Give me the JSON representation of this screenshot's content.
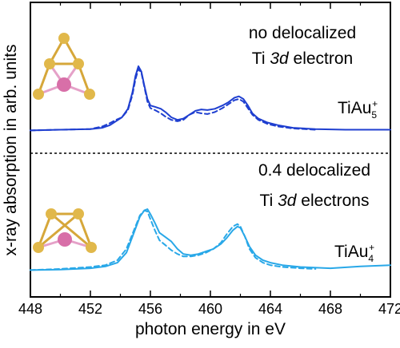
{
  "chart_data": {
    "type": "line",
    "xlabel": "photon energy in eV",
    "ylabel": "x-ray absorption in arb. units",
    "xlim": [
      448,
      472
    ],
    "x_ticks": [
      448,
      452,
      456,
      460,
      464,
      468,
      472
    ],
    "y_ticks": "none",
    "grid": false,
    "panels": [
      {
        "label": "TiAu5+",
        "label_parts": {
          "base": "TiAu",
          "sub": "5",
          "sup": "+"
        },
        "annotation_lines": [
          [
            "no delocalized"
          ],
          [
            "Ti ",
            "3d",
            " electron"
          ]
        ],
        "color": "#1f3fd0",
        "series": [
          {
            "style": "solid",
            "x": [
              448.0,
              450.0,
              452.0,
              452.8,
              453.3,
              453.7,
              454.1,
              454.5,
              454.8,
              455.0,
              455.2,
              455.4,
              455.6,
              455.8,
              456.0,
              456.3,
              456.7,
              457.0,
              457.4,
              457.8,
              458.2,
              458.6,
              459.0,
              459.4,
              459.8,
              460.3,
              460.8,
              461.2,
              461.6,
              461.9,
              462.2,
              462.5,
              462.8,
              463.2,
              463.8,
              464.5,
              465.5,
              467.0,
              469.0,
              472.0
            ],
            "y": [
              0.02,
              0.03,
              0.04,
              0.06,
              0.1,
              0.16,
              0.22,
              0.35,
              0.6,
              0.85,
              1.0,
              0.92,
              0.7,
              0.5,
              0.4,
              0.38,
              0.35,
              0.3,
              0.22,
              0.18,
              0.2,
              0.26,
              0.32,
              0.34,
              0.33,
              0.35,
              0.4,
              0.45,
              0.52,
              0.54,
              0.5,
              0.4,
              0.28,
              0.2,
              0.14,
              0.1,
              0.06,
              0.04,
              0.03,
              0.03
            ]
          },
          {
            "style": "dashed",
            "x": [
              448.0,
              450.0,
              452.0,
              452.8,
              453.3,
              453.7,
              454.1,
              454.5,
              454.8,
              455.0,
              455.2,
              455.4,
              455.6,
              455.8,
              456.0,
              456.3,
              456.7,
              457.0,
              457.4,
              457.8,
              458.2,
              458.6,
              459.0,
              459.4,
              459.8,
              460.3,
              460.8,
              461.2,
              461.6,
              461.9,
              462.2,
              462.5,
              462.8,
              463.2,
              463.8,
              464.5,
              465.5,
              467.0
            ],
            "y": [
              0.02,
              0.03,
              0.04,
              0.08,
              0.13,
              0.18,
              0.22,
              0.33,
              0.56,
              0.8,
              0.96,
              0.9,
              0.68,
              0.46,
              0.36,
              0.33,
              0.28,
              0.23,
              0.18,
              0.16,
              0.18,
              0.26,
              0.3,
              0.28,
              0.27,
              0.3,
              0.36,
              0.42,
              0.48,
              0.5,
              0.46,
              0.36,
              0.26,
              0.18,
              0.12,
              0.08,
              0.05,
              0.03
            ]
          }
        ]
      },
      {
        "label": "TiAu4+",
        "label_parts": {
          "base": "TiAu",
          "sub": "4",
          "sup": "+"
        },
        "annotation_lines": [
          [
            "0.4 delocalized"
          ],
          [
            "Ti ",
            "3d",
            " electrons"
          ]
        ],
        "color": "#29a8e8",
        "series": [
          {
            "style": "solid",
            "x": [
              448.0,
              450.0,
              452.0,
              453.0,
              453.8,
              454.4,
              454.9,
              455.3,
              455.6,
              455.8,
              456.0,
              456.3,
              456.6,
              457.0,
              457.4,
              457.8,
              458.2,
              458.7,
              459.2,
              459.7,
              460.2,
              460.7,
              461.1,
              461.5,
              461.8,
              462.0,
              462.3,
              462.6,
              463.0,
              463.5,
              464.0,
              464.8,
              466.0,
              468.0,
              470.0,
              472.0
            ],
            "y": [
              0.02,
              0.03,
              0.05,
              0.08,
              0.14,
              0.3,
              0.62,
              0.88,
              0.98,
              1.0,
              0.92,
              0.78,
              0.62,
              0.55,
              0.48,
              0.36,
              0.28,
              0.26,
              0.28,
              0.32,
              0.36,
              0.44,
              0.54,
              0.66,
              0.72,
              0.7,
              0.56,
              0.4,
              0.26,
              0.18,
              0.14,
              0.1,
              0.07,
              0.05,
              0.08,
              0.1
            ]
          },
          {
            "style": "dashed",
            "x": [
              448.0,
              450.0,
              452.0,
              453.0,
              453.8,
              454.4,
              454.9,
              455.3,
              455.6,
              455.8,
              456.0,
              456.3,
              456.6,
              457.0,
              457.4,
              457.8,
              458.2,
              458.7,
              459.2,
              459.7,
              460.2,
              460.7,
              461.1,
              461.5,
              461.8,
              462.0,
              462.3,
              462.6,
              463.0,
              463.5,
              464.0,
              464.8,
              466.0,
              467.0
            ],
            "y": [
              0.02,
              0.04,
              0.07,
              0.1,
              0.18,
              0.36,
              0.66,
              0.9,
              0.98,
              0.96,
              0.84,
              0.66,
              0.5,
              0.42,
              0.34,
              0.28,
              0.24,
              0.24,
              0.26,
              0.3,
              0.36,
              0.46,
              0.6,
              0.72,
              0.76,
              0.72,
              0.56,
              0.36,
              0.22,
              0.14,
              0.1,
              0.07,
              0.05,
              0.04
            ]
          }
        ]
      }
    ]
  },
  "colors": {
    "frame": "#000000",
    "gold": "#e1b84a",
    "titanium": "#d86fa8",
    "bond_gold": "#d6a73a",
    "bond_ti": "#e5a1c8"
  }
}
